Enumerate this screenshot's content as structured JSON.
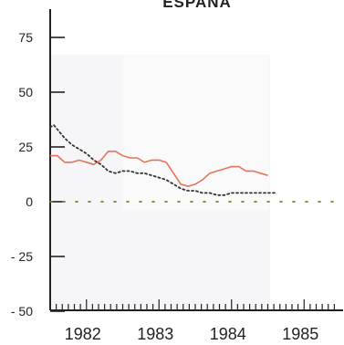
{
  "chart_data": {
    "type": "line",
    "title": "ESPANA",
    "xlabel": "",
    "ylabel": "",
    "ylim": [
      -50,
      80
    ],
    "xlim": [
      1981.5,
      1985.4
    ],
    "yticks": [
      75,
      50,
      25,
      0,
      -25,
      -50
    ],
    "ytick_labels": [
      "75",
      "50",
      "25",
      "0",
      "- 25",
      "- 50"
    ],
    "xtick_labels": [
      "1982",
      "1983",
      "1984",
      "1985"
    ],
    "xtick_positions": [
      1982,
      1983,
      1984,
      1985
    ],
    "grid": false,
    "legend": "none",
    "series": [
      {
        "style": "solid",
        "color": "#e8735c",
        "x": [
          1981.5,
          1981.6,
          1981.7,
          1981.8,
          1981.9,
          1982.0,
          1982.1,
          1982.2,
          1982.3,
          1982.4,
          1982.5,
          1982.6,
          1982.7,
          1982.8,
          1982.9,
          1983.0,
          1983.1,
          1983.2,
          1983.3,
          1983.4,
          1983.5,
          1983.6,
          1983.7,
          1983.8,
          1983.9,
          1984.0,
          1984.1,
          1984.2,
          1984.3,
          1984.4,
          1984.5
        ],
        "values": [
          21,
          21,
          18,
          18,
          19,
          18,
          17,
          19,
          23,
          23,
          21,
          20,
          20,
          18,
          19,
          19,
          18,
          13,
          8,
          7,
          8,
          10,
          13,
          14,
          15,
          16,
          16,
          14,
          14,
          13,
          12
        ]
      },
      {
        "style": "dotted",
        "color": "#333333",
        "x": [
          1981.5,
          1981.55,
          1981.6,
          1981.7,
          1981.8,
          1981.9,
          1982.0,
          1982.1,
          1982.2,
          1982.3,
          1982.4,
          1982.5,
          1982.6,
          1982.7,
          1982.8,
          1982.9,
          1983.0,
          1983.1,
          1983.2,
          1983.3,
          1983.4,
          1983.5,
          1983.6,
          1983.7,
          1983.8,
          1983.9,
          1984.0,
          1984.1,
          1984.2,
          1984.3,
          1984.4,
          1984.5,
          1984.6
        ],
        "values": [
          34,
          35,
          33,
          29,
          26,
          24,
          22,
          19,
          17,
          14,
          13,
          14,
          14,
          13,
          13,
          12,
          11,
          10,
          8,
          6,
          5,
          5,
          4,
          4,
          3,
          3,
          4,
          4,
          4,
          4,
          4,
          4,
          4
        ]
      },
      {
        "style": "dotted",
        "color": "#6a8a3a",
        "x": [
          1981.5,
          1985.4
        ],
        "values": [
          0,
          0
        ]
      }
    ]
  }
}
